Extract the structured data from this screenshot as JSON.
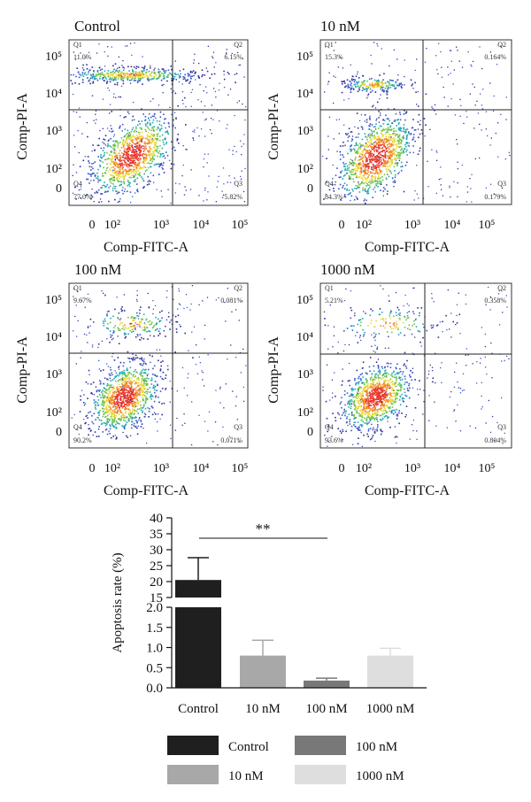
{
  "chart_data": [
    {
      "type": "scatter",
      "title": "Control",
      "xlabel": "Comp-FITC-A",
      "ylabel": "Comp-PI-A",
      "xticks": [
        "0",
        "10²",
        "10³",
        "10⁴",
        "10⁵"
      ],
      "yticks": [
        "0",
        "10²",
        "10³",
        "10⁴",
        "10⁵"
      ],
      "quadrants": [
        {
          "name": "Q1",
          "value": "11.0%"
        },
        {
          "name": "Q2",
          "value": "6.15%"
        },
        {
          "name": "Q3",
          "value": "5.82%"
        },
        {
          "name": "Q4",
          "value": "77.0%"
        }
      ]
    },
    {
      "type": "scatter",
      "title": "10 nM",
      "xlabel": "Comp-FITC-A",
      "ylabel": "Comp-PI-A",
      "xticks": [
        "0",
        "10²",
        "10³",
        "10⁴",
        "10⁵"
      ],
      "yticks": [
        "0",
        "10²",
        "10³",
        "10⁴",
        "10⁵"
      ],
      "quadrants": [
        {
          "name": "Q1",
          "value": "15.3%"
        },
        {
          "name": "Q2",
          "value": "0.164%"
        },
        {
          "name": "Q3",
          "value": "0.179%"
        },
        {
          "name": "Q4",
          "value": "84.3%"
        }
      ]
    },
    {
      "type": "scatter",
      "title": "100 nM",
      "xlabel": "Comp-FITC-A",
      "ylabel": "Comp-PI-A",
      "xticks": [
        "0",
        "10²",
        "10³",
        "10⁴",
        "10⁵"
      ],
      "yticks": [
        "0",
        "10²",
        "10³",
        "10⁴",
        "10⁵"
      ],
      "quadrants": [
        {
          "name": "Q1",
          "value": "9.67%"
        },
        {
          "name": "Q2",
          "value": "0.081%"
        },
        {
          "name": "Q3",
          "value": "0.071%"
        },
        {
          "name": "Q4",
          "value": "90.2%"
        }
      ]
    },
    {
      "type": "scatter",
      "title": "1000 nM",
      "xlabel": "Comp-FITC-A",
      "ylabel": "Comp-PI-A",
      "xticks": [
        "0",
        "10²",
        "10³",
        "10⁴",
        "10⁵"
      ],
      "yticks": [
        "0",
        "10²",
        "10³",
        "10⁴",
        "10⁵"
      ],
      "quadrants": [
        {
          "name": "Q1",
          "value": "5.21%"
        },
        {
          "name": "Q2",
          "value": "0.358%"
        },
        {
          "name": "Q3",
          "value": "0.804%"
        },
        {
          "name": "Q4",
          "value": "93.6%"
        }
      ]
    },
    {
      "type": "bar",
      "ylabel": "Apoptosis rate (%)",
      "categories": [
        "Control",
        "10 nM",
        "100 nM",
        "1000 nM"
      ],
      "values": [
        20.5,
        0.8,
        0.18,
        0.8
      ],
      "errors": [
        7.0,
        0.38,
        0.06,
        0.18
      ],
      "colors": [
        "#1f1f1f",
        "#a8a8a8",
        "#787878",
        "#dedede"
      ],
      "axis_break": {
        "lower": {
          "range": [
            0,
            2.0
          ],
          "ticks": [
            "0.0",
            "0.5",
            "1.0",
            "1.5",
            "2.0"
          ]
        },
        "upper": {
          "range": [
            15,
            40
          ],
          "ticks": [
            "15",
            "20",
            "25",
            "30",
            "35",
            "40"
          ]
        }
      },
      "significance": {
        "from": "Control",
        "to": "100 nM",
        "label": "**"
      },
      "legend": {
        "position": "bottom",
        "entries": [
          {
            "label": "Control",
            "color": "#1f1f1f"
          },
          {
            "label": "100 nM",
            "color": "#787878"
          },
          {
            "label": "10 nM",
            "color": "#a8a8a8"
          },
          {
            "label": "1000 nM",
            "color": "#dedede"
          }
        ]
      }
    }
  ]
}
